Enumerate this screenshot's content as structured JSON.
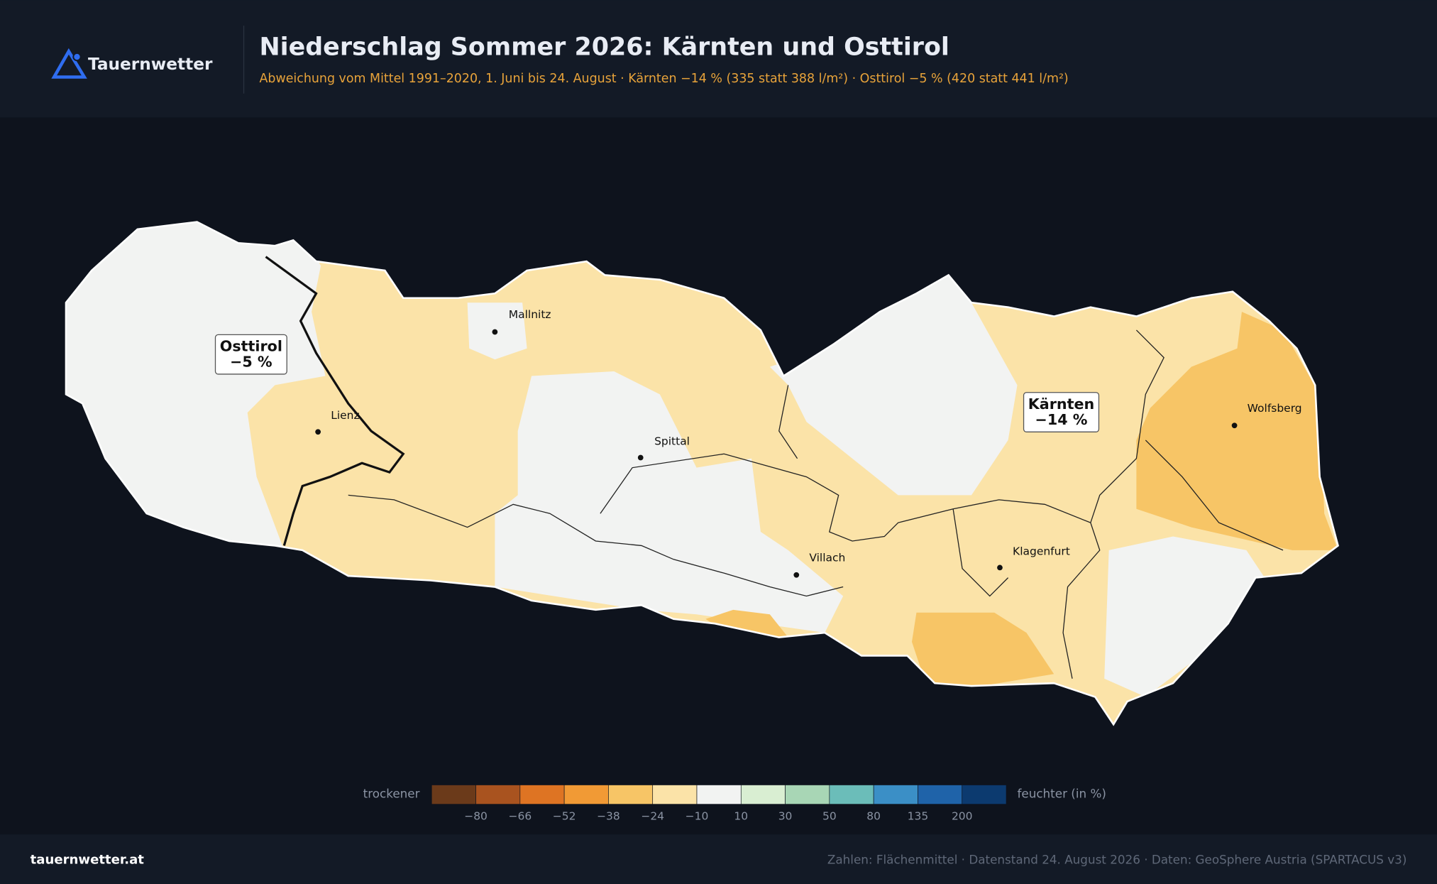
{
  "header": {
    "logo": "Tauernwetter",
    "title": "Niederschlag Sommer 2026: Kärnten und Osttirol",
    "subtitle": "Abweichung vom Mittel 1991–2020, 1. Juni bis 24. August · Kärnten −14 % (335 statt 388 l/m²) · Osttirol −5 % (420 statt 441 l/m²)"
  },
  "map": {
    "regions": [
      {
        "label": "Osttirol",
        "value": "−5 %"
      },
      {
        "label": "Kärnten",
        "value": "−14 %"
      }
    ],
    "places": [
      "Mallnitz",
      "Lienz",
      "Spittal",
      "Villach",
      "Klagenfurt",
      "Wolfsberg"
    ]
  },
  "legend": {
    "left": "trockener",
    "right": "feuchter  (in %)",
    "colors": [
      "#6b3a1a",
      "#a9531f",
      "#de7423",
      "#f19a35",
      "#f7c566",
      "#fbe3a8",
      "#f2f3f2",
      "#d9eed2",
      "#a8d6b5",
      "#6bbdb9",
      "#3b8fc6",
      "#1f63a9",
      "#0c3a6f"
    ],
    "ticks": [
      "−80",
      "−66",
      "−52",
      "−38",
      "−24",
      "−10",
      "10",
      "30",
      "50",
      "80",
      "135",
      "200"
    ]
  },
  "footer": {
    "site": "tauernwetter.at",
    "note": "Zahlen: Flächenmittel · Datenstand 24. August 2026  ·  Daten: GeoSphere Austria (SPARTACUS v3)"
  }
}
